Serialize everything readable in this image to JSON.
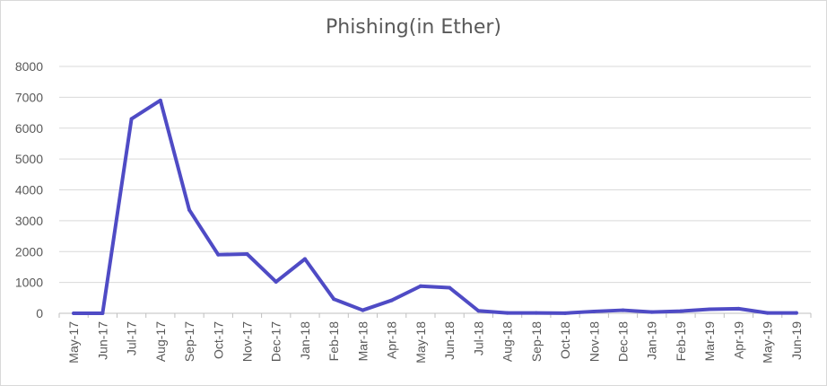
{
  "chart_data": {
    "type": "line",
    "title": "Phishing(in Ether)",
    "xlabel": "",
    "ylabel": "",
    "ylim": [
      0,
      8000
    ],
    "yticks": [
      "0",
      "1000",
      "2000",
      "3000",
      "4000",
      "5000",
      "6000",
      "7000",
      "8000"
    ],
    "grid": true,
    "legend": "none",
    "categories": [
      "May-17",
      "Jun-17",
      "Jul-17",
      "Aug-17",
      "Sep-17",
      "Oct-17",
      "Nov-17",
      "Dec-17",
      "Jan-18",
      "Feb-18",
      "Mar-18",
      "Apr-18",
      "May-18",
      "Jun-18",
      "Jul-18",
      "Aug-18",
      "Sep-18",
      "Oct-18",
      "Nov-18",
      "Dec-18",
      "Jan-19",
      "Feb-19",
      "Mar-19",
      "Apr-19",
      "May-19",
      "Jun-19"
    ],
    "series": [
      {
        "values": [
          0,
          0,
          6300,
          6900,
          3350,
          1900,
          1920,
          1020,
          1760,
          460,
          100,
          420,
          880,
          830,
          80,
          10,
          10,
          5,
          60,
          100,
          40,
          70,
          130,
          150,
          10,
          10
        ]
      }
    ],
    "colors": {
      "line": "#4f4bc5",
      "grid": "#d9d9d9",
      "axis": "#bfbfbf",
      "text": "#595959"
    }
  }
}
